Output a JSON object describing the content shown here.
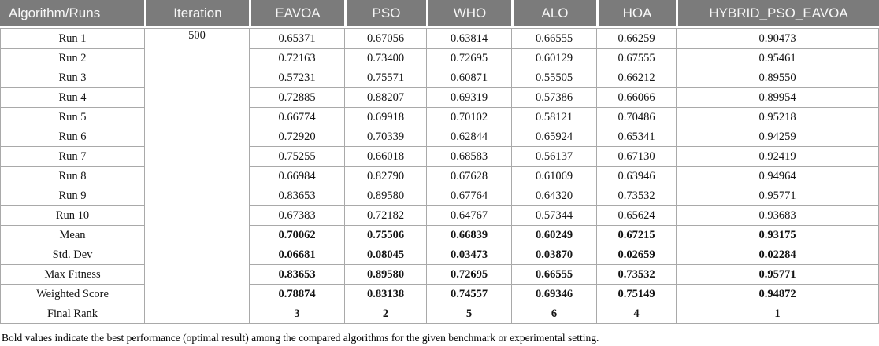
{
  "colors": {
    "header_bg": "#7b7b7b",
    "header_text": "#f7f7f7",
    "grid_line": "#a9a9a9",
    "body_text": "#141414"
  },
  "table": {
    "header": {
      "row_label_header": "Algorithm/Runs",
      "iteration_header": "Iteration",
      "algorithms": [
        "EAVOA",
        "PSO",
        "WHO",
        "ALO",
        "HOA",
        "HYBRID_PSO_EAVOA"
      ]
    },
    "iteration_value": "500",
    "rows": [
      {
        "label": "Run 1",
        "bold": false,
        "values": [
          "0.65371",
          "0.67056",
          "0.63814",
          "0.66555",
          "0.66259",
          "0.90473"
        ]
      },
      {
        "label": "Run 2",
        "bold": false,
        "values": [
          "0.72163",
          "0.73400",
          "0.72695",
          "0.60129",
          "0.67555",
          "0.95461"
        ]
      },
      {
        "label": "Run 3",
        "bold": false,
        "values": [
          "0.57231",
          "0.75571",
          "0.60871",
          "0.55505",
          "0.66212",
          "0.89550"
        ]
      },
      {
        "label": "Run 4",
        "bold": false,
        "values": [
          "0.72885",
          "0.88207",
          "0.69319",
          "0.57386",
          "0.66066",
          "0.89954"
        ]
      },
      {
        "label": "Run 5",
        "bold": false,
        "values": [
          "0.66774",
          "0.69918",
          "0.70102",
          "0.58121",
          "0.70486",
          "0.95218"
        ]
      },
      {
        "label": "Run 6",
        "bold": false,
        "values": [
          "0.72920",
          "0.70339",
          "0.62844",
          "0.65924",
          "0.65341",
          "0.94259"
        ]
      },
      {
        "label": "Run 7",
        "bold": false,
        "values": [
          "0.75255",
          "0.66018",
          "0.68583",
          "0.56137",
          "0.67130",
          "0.92419"
        ]
      },
      {
        "label": "Run 8",
        "bold": false,
        "values": [
          "0.66984",
          "0.82790",
          "0.67628",
          "0.61069",
          "0.63946",
          "0.94964"
        ]
      },
      {
        "label": "Run 9",
        "bold": false,
        "values": [
          "0.83653",
          "0.89580",
          "0.67764",
          "0.64320",
          "0.73532",
          "0.95771"
        ]
      },
      {
        "label": "Run 10",
        "bold": false,
        "values": [
          "0.67383",
          "0.72182",
          "0.64767",
          "0.57344",
          "0.65624",
          "0.93683"
        ]
      },
      {
        "label": "Mean",
        "bold": true,
        "values": [
          "0.70062",
          "0.75506",
          "0.66839",
          "0.60249",
          "0.67215",
          "0.93175"
        ]
      },
      {
        "label": "Std. Dev",
        "bold": true,
        "values": [
          "0.06681",
          "0.08045",
          "0.03473",
          "0.03870",
          "0.02659",
          "0.02284"
        ]
      },
      {
        "label": "Max Fitness",
        "bold": true,
        "values": [
          "0.83653",
          "0.89580",
          "0.72695",
          "0.66555",
          "0.73532",
          "0.95771"
        ]
      },
      {
        "label": "Weighted Score",
        "bold": true,
        "values": [
          "0.78874",
          "0.83138",
          "0.74557",
          "0.69346",
          "0.75149",
          "0.94872"
        ]
      },
      {
        "label": "Final Rank",
        "bold": true,
        "values": [
          "3",
          "2",
          "5",
          "6",
          "4",
          "1"
        ]
      }
    ]
  },
  "footnote": "Bold values indicate the best performance (optimal result) among the compared algorithms for the given benchmark or experimental setting."
}
